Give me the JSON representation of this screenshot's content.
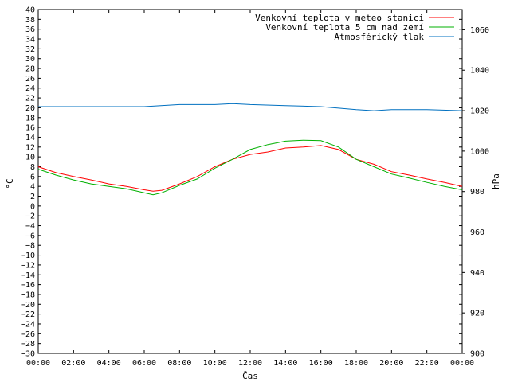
{
  "chart_data": {
    "type": "line",
    "xlabel": "Čas",
    "ylabel_left": "°C",
    "ylabel_right": "hPa",
    "x_ticks": [
      "00:00",
      "02:00",
      "04:00",
      "06:00",
      "08:00",
      "10:00",
      "12:00",
      "14:00",
      "16:00",
      "18:00",
      "20:00",
      "22:00",
      "00:00"
    ],
    "x_hours": [
      0,
      24
    ],
    "ylim_left": [
      -30,
      40
    ],
    "ylim_right": [
      900,
      1070
    ],
    "y_ticks_left": [
      40,
      38,
      36,
      34,
      32,
      30,
      28,
      26,
      24,
      22,
      20,
      18,
      16,
      14,
      12,
      10,
      8,
      6,
      4,
      2,
      0,
      -2,
      -4,
      -6,
      -8,
      -10,
      -12,
      -14,
      -16,
      -18,
      -20,
      -22,
      -24,
      -26,
      -28,
      -30
    ],
    "y_ticks_right": [
      1060,
      1040,
      1020,
      1000,
      980,
      960,
      940,
      920,
      900
    ],
    "grid": false,
    "legend_position": "top-right",
    "series": [
      {
        "name": "Venkovní teplota v meteo stanici",
        "color": "#ff0000",
        "axis": "left",
        "x": [
          0,
          1,
          2,
          3,
          4,
          5,
          6,
          6.5,
          7,
          8,
          9,
          10,
          11,
          12,
          13,
          14,
          15,
          16,
          17,
          18,
          19,
          20,
          21,
          22,
          23,
          24
        ],
        "y": [
          8,
          6.8,
          6,
          5.3,
          4.5,
          4,
          3.3,
          3,
          3.2,
          4.5,
          6,
          8,
          9.5,
          10.5,
          11,
          11.8,
          12,
          12.3,
          11.5,
          9.5,
          8.5,
          7,
          6.3,
          5.5,
          4.8,
          4
        ]
      },
      {
        "name": "Venkovní teplota 5 cm nad zemí",
        "color": "#00b000",
        "axis": "left",
        "x": [
          0,
          1,
          2,
          3,
          4,
          5,
          6,
          6.5,
          7,
          8,
          9,
          10,
          11,
          12,
          13,
          14,
          15,
          16,
          17,
          18,
          19,
          20,
          21,
          22,
          23,
          24
        ],
        "y": [
          7.5,
          6.3,
          5.3,
          4.5,
          4,
          3.5,
          2.7,
          2.3,
          2.7,
          4.2,
          5.5,
          7.7,
          9.5,
          11.5,
          12.5,
          13.2,
          13.4,
          13.3,
          12,
          9.5,
          8,
          6.5,
          5.7,
          4.8,
          4,
          3.3
        ]
      },
      {
        "name": "Atmosférický tlak",
        "color": "#0070c0",
        "axis": "right",
        "x": [
          0,
          2,
          4,
          6,
          8,
          10,
          11,
          12,
          14,
          16,
          18,
          19,
          20,
          22,
          24
        ],
        "y": [
          1022,
          1022,
          1022,
          1022,
          1023,
          1023,
          1023.5,
          1023,
          1022.5,
          1022,
          1020.5,
          1020,
          1020.5,
          1020.5,
          1020
        ]
      }
    ]
  }
}
